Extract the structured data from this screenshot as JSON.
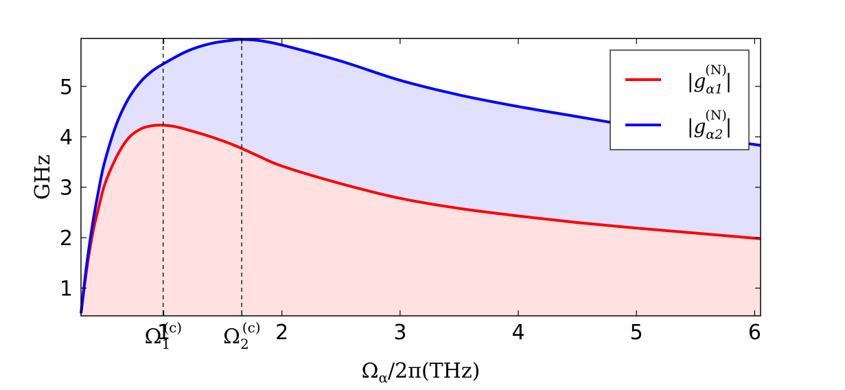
{
  "chart_data": {
    "type": "area",
    "xlabel": "Ω_α/2π(THz)",
    "ylabel": "GHz",
    "xlim": [
      0.3,
      6.05
    ],
    "ylim": [
      0.45,
      5.95
    ],
    "xticks": [
      {
        "value": 1,
        "label": "1"
      },
      {
        "value": 2,
        "label": "2"
      },
      {
        "value": 3,
        "label": "3"
      },
      {
        "value": 4,
        "label": "4"
      },
      {
        "value": 5,
        "label": "5"
      },
      {
        "value": 6,
        "label": "6"
      }
    ],
    "yticks": [
      {
        "value": 1,
        "label": "1"
      },
      {
        "value": 2,
        "label": "2"
      },
      {
        "value": 3,
        "label": "3"
      },
      {
        "value": 4,
        "label": "4"
      },
      {
        "value": 5,
        "label": "5"
      }
    ],
    "critical_lines": [
      {
        "value": 0.995,
        "label": "Ω1(c)",
        "sym": "Ω",
        "sub": "1",
        "sup": "(c)"
      },
      {
        "value": 1.66,
        "label": "Ω2(c)",
        "sym": "Ω",
        "sub": "2",
        "sup": "(c)"
      }
    ],
    "legend_position": "top-right",
    "series": [
      {
        "name": "|gα1(N)|",
        "legend": {
          "sym": "g",
          "sub": "α1",
          "sup": "(N)"
        },
        "color": "#ff0000",
        "fill": "#ffe1e1",
        "x": [
          0.3,
          0.35,
          0.4,
          0.45,
          0.5,
          0.6,
          0.7,
          0.8,
          0.9,
          1.0,
          1.1,
          1.2,
          1.4,
          1.6,
          1.8,
          2.0,
          2.5,
          3.0,
          3.5,
          4.0,
          4.5,
          5.0,
          5.5,
          6.05
        ],
        "values": [
          0.5,
          1.4,
          2.1,
          2.6,
          3.05,
          3.6,
          3.97,
          4.15,
          4.22,
          4.23,
          4.2,
          4.14,
          4.0,
          3.83,
          3.62,
          3.42,
          3.07,
          2.78,
          2.58,
          2.43,
          2.3,
          2.19,
          2.09,
          1.98
        ]
      },
      {
        "name": "|gα2(N)|",
        "legend": {
          "sym": "g",
          "sub": "α2",
          "sup": "(N)"
        },
        "color": "#0000ff",
        "fill": "#e1e1ff",
        "x": [
          0.3,
          0.35,
          0.4,
          0.45,
          0.5,
          0.6,
          0.7,
          0.8,
          0.9,
          1.0,
          1.2,
          1.4,
          1.6,
          1.66,
          1.8,
          2.0,
          2.5,
          3.0,
          3.5,
          4.0,
          4.5,
          5.0,
          5.5,
          6.05
        ],
        "values": [
          0.5,
          1.5,
          2.3,
          2.95,
          3.5,
          4.25,
          4.75,
          5.08,
          5.3,
          5.45,
          5.7,
          5.85,
          5.92,
          5.93,
          5.91,
          5.82,
          5.5,
          5.12,
          4.83,
          4.6,
          4.4,
          4.2,
          4.02,
          3.83
        ]
      }
    ]
  }
}
